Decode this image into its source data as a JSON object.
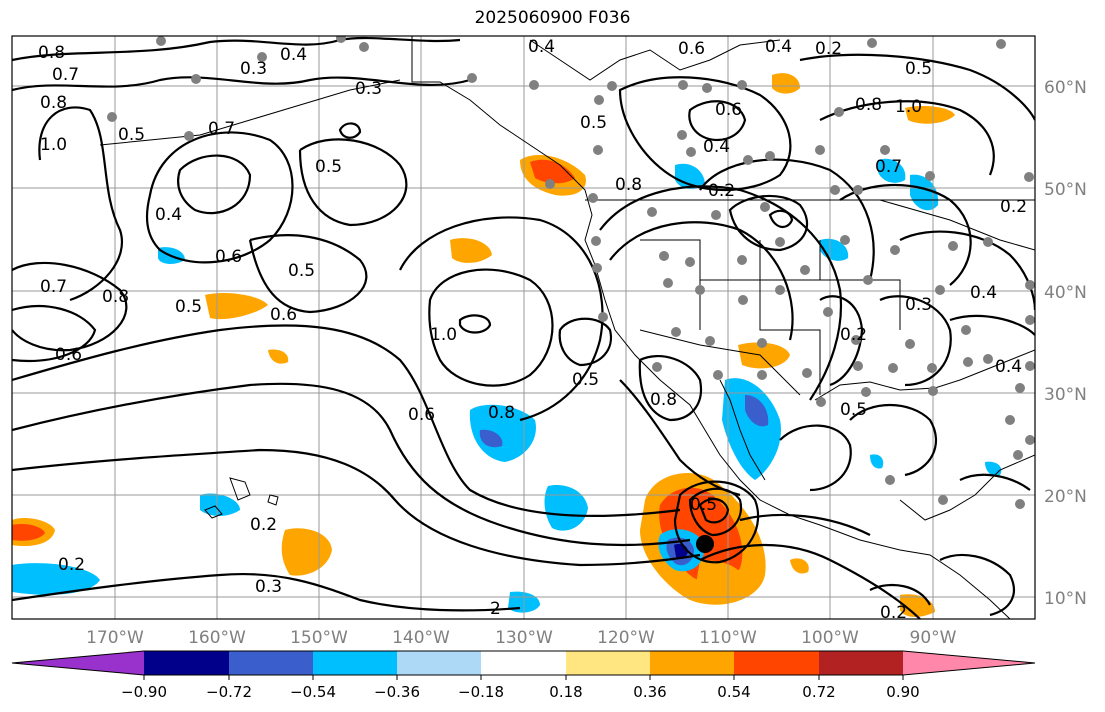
{
  "title": "2025060900 F036",
  "lat_labels": [
    "60°N",
    "50°N",
    "40°N",
    "30°N",
    "20°N",
    "10°N"
  ],
  "lon_labels": [
    "170°W",
    "160°W",
    "150°W",
    "140°W",
    "130°W",
    "120°W",
    "110°W",
    "100°W",
    "90°W"
  ],
  "colorbar": {
    "ticks": [
      "−0.90",
      "−0.72",
      "−0.54",
      "−0.36",
      "−0.18",
      "0.18",
      "0.36",
      "0.54",
      "0.72",
      "0.90"
    ],
    "colors": [
      "#9932cc",
      "#00008b",
      "#3a5fcd",
      "#00bfff",
      "#add8f6",
      "#ffffff",
      "#ffe680",
      "#ffa500",
      "#ff4500",
      "#b22222",
      "#ff88aa"
    ]
  },
  "contour_labels": [
    {
      "text": "0.8"
    },
    {
      "text": "0.7"
    },
    {
      "text": "0.8"
    },
    {
      "text": "1.0"
    },
    {
      "text": "0.5"
    },
    {
      "text": "0.3"
    },
    {
      "text": "0.4"
    },
    {
      "text": "0.3"
    },
    {
      "text": "0.7"
    },
    {
      "text": "0.5"
    },
    {
      "text": "0.4"
    },
    {
      "text": "0.6"
    },
    {
      "text": "0.5"
    },
    {
      "text": "0.7"
    },
    {
      "text": "0.8"
    },
    {
      "text": "0.5"
    },
    {
      "text": "0.6"
    },
    {
      "text": "0.6"
    },
    {
      "text": "1.0"
    },
    {
      "text": "0.6"
    },
    {
      "text": "0.8"
    },
    {
      "text": "0.5"
    },
    {
      "text": "0.4"
    },
    {
      "text": "0.6"
    },
    {
      "text": "0.4"
    },
    {
      "text": "0.2"
    },
    {
      "text": "0.5"
    },
    {
      "text": "0.6"
    },
    {
      "text": "0.5"
    },
    {
      "text": "0.8"
    },
    {
      "text": "1.0"
    },
    {
      "text": "0.4"
    },
    {
      "text": "0.2"
    },
    {
      "text": "0.8"
    },
    {
      "text": "0.7"
    },
    {
      "text": "0.2"
    },
    {
      "text": "0.4"
    },
    {
      "text": "0.3"
    },
    {
      "text": "0.4"
    },
    {
      "text": "0.5"
    },
    {
      "text": "0.2"
    },
    {
      "text": "0.8"
    },
    {
      "text": "0.5"
    },
    {
      "text": "0.2"
    },
    {
      "text": "0.3"
    },
    {
      "text": "0.2"
    },
    {
      "text": "0.2"
    },
    {
      "text": "2"
    }
  ]
}
